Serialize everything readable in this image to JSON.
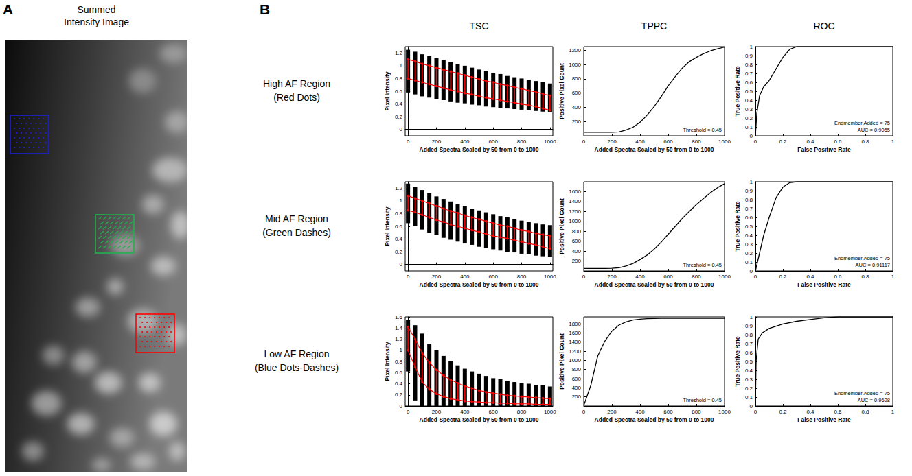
{
  "panel_a": {
    "letter": "A",
    "title_lines": [
      "Summed",
      "Intensity Image"
    ]
  },
  "panel_b": {
    "letter": "B",
    "column_titles": [
      "TSC",
      "TPPC",
      "ROC"
    ],
    "rows": [
      {
        "name": "High AF Region",
        "detail": "(Red Dots)",
        "color": "#ff0000",
        "marker": "dots"
      },
      {
        "name": "Mid AF Region",
        "detail": "(Green Dashes)",
        "color": "#22b14c",
        "marker": "dashes"
      },
      {
        "name": "Low AF Region",
        "detail": "(Blue Dots-Dashes)",
        "color": "#1f1fd6",
        "marker": "dot-dashes"
      }
    ]
  },
  "chart_data": [
    {
      "type": "range",
      "x_label": "Added Spectra Scaled by 50 from 0 to 1000",
      "y_label": "Pixel Intensity",
      "x": [
        0,
        50,
        100,
        150,
        200,
        250,
        300,
        350,
        400,
        450,
        500,
        550,
        600,
        650,
        700,
        750,
        800,
        850,
        900,
        950,
        1000
      ],
      "range": {
        "color": "#000000",
        "low": [
          0.58,
          0.55,
          0.52,
          0.5,
          0.48,
          0.46,
          0.44,
          0.42,
          0.41,
          0.39,
          0.38,
          0.36,
          0.35,
          0.34,
          0.33,
          0.32,
          0.31,
          0.3,
          0.29,
          0.28,
          0.27
        ],
        "high": [
          1.25,
          1.22,
          1.18,
          1.15,
          1.12,
          1.09,
          1.06,
          1.03,
          1.0,
          0.97,
          0.94,
          0.92,
          0.89,
          0.87,
          0.84,
          0.82,
          0.8,
          0.78,
          0.76,
          0.74,
          0.72
        ]
      },
      "inner_range": {
        "color": "#ff0000",
        "marker": "circle",
        "low": [
          0.8,
          0.77,
          0.74,
          0.71,
          0.68,
          0.65,
          0.62,
          0.6,
          0.57,
          0.55,
          0.52,
          0.5,
          0.48,
          0.46,
          0.44,
          0.42,
          0.4,
          0.38,
          0.36,
          0.33,
          0.3
        ],
        "high": [
          1.1,
          1.07,
          1.03,
          1.0,
          0.97,
          0.94,
          0.91,
          0.88,
          0.85,
          0.82,
          0.79,
          0.76,
          0.74,
          0.71,
          0.69,
          0.66,
          0.64,
          0.61,
          0.59,
          0.56,
          0.53
        ]
      },
      "xlim": [
        -20,
        1020
      ],
      "xticks": [
        0,
        200,
        400,
        600,
        800,
        1000
      ],
      "ylim": [
        -0.1,
        1.3
      ],
      "yticks": [
        0,
        0.2,
        0.4,
        0.6,
        0.8,
        1,
        1.2
      ],
      "grid": false
    },
    {
      "type": "line",
      "x_label": "Added Spectra Scaled by 50 from 0 to 1000",
      "y_label": "Positive Pixel Count",
      "x": [
        0,
        50,
        100,
        150,
        200,
        250,
        300,
        350,
        400,
        450,
        500,
        550,
        600,
        650,
        700,
        750,
        800,
        850,
        900,
        950,
        1000
      ],
      "values": [
        50,
        50,
        50,
        50,
        50,
        55,
        80,
        120,
        190,
        290,
        410,
        550,
        700,
        830,
        950,
        1040,
        1100,
        1150,
        1190,
        1220,
        1245
      ],
      "color": "#000000",
      "annotations": [
        "Threshold = 0.45"
      ],
      "xlim": [
        0,
        1000
      ],
      "xticks": [
        0,
        200,
        400,
        600,
        800,
        1000
      ],
      "ylim": [
        0,
        1250
      ],
      "yticks": [
        200,
        400,
        600,
        800,
        1000,
        1200
      ],
      "grid": false
    },
    {
      "type": "line",
      "x_label": "False Positive Rate",
      "y_label": "True Positive Rate",
      "x": [
        0,
        0.01,
        0.03,
        0.06,
        0.1,
        0.15,
        0.2,
        0.25,
        0.3,
        1
      ],
      "values": [
        0,
        0.25,
        0.45,
        0.55,
        0.62,
        0.75,
        0.88,
        0.97,
        1,
        1
      ],
      "color": "#000000",
      "annotations": [
        "Endmember Added = 75",
        "AUC = 0.9055"
      ],
      "xlim": [
        0,
        1
      ],
      "xticks": [
        0,
        0.2,
        0.4,
        0.6,
        0.8,
        1
      ],
      "ylim": [
        0,
        1
      ],
      "yticks": [
        0,
        0.1,
        0.2,
        0.3,
        0.4,
        0.5,
        0.6,
        0.7,
        0.8,
        0.9,
        1
      ],
      "grid": false
    },
    {
      "type": "range",
      "x_label": "Added Spectra Scaled by 50 from 0 to 1000",
      "y_label": "Pixel Intensity",
      "x": [
        0,
        50,
        100,
        150,
        200,
        250,
        300,
        350,
        400,
        450,
        500,
        550,
        600,
        650,
        700,
        750,
        800,
        850,
        900,
        950,
        1000
      ],
      "range": {
        "color": "#000000",
        "low": [
          0.65,
          0.6,
          0.55,
          0.5,
          0.46,
          0.42,
          0.39,
          0.36,
          0.33,
          0.31,
          0.28,
          0.26,
          0.24,
          0.22,
          0.2,
          0.19,
          0.17,
          0.16,
          0.14,
          0.13,
          0.12
        ],
        "high": [
          1.27,
          1.22,
          1.17,
          1.12,
          1.07,
          1.03,
          0.99,
          0.95,
          0.92,
          0.88,
          0.85,
          0.82,
          0.79,
          0.76,
          0.74,
          0.71,
          0.69,
          0.67,
          0.65,
          0.63,
          0.62
        ]
      },
      "inner_range": {
        "color": "#ff0000",
        "marker": "circle",
        "low": [
          0.85,
          0.82,
          0.78,
          0.74,
          0.7,
          0.67,
          0.63,
          0.6,
          0.57,
          0.54,
          0.51,
          0.48,
          0.45,
          0.43,
          0.41,
          0.38,
          0.36,
          0.33,
          0.31,
          0.28,
          0.25
        ],
        "high": [
          1.08,
          1.04,
          1.0,
          0.96,
          0.92,
          0.88,
          0.84,
          0.81,
          0.77,
          0.74,
          0.71,
          0.68,
          0.65,
          0.62,
          0.6,
          0.57,
          0.54,
          0.52,
          0.49,
          0.47,
          0.45
        ]
      },
      "xlim": [
        -20,
        1020
      ],
      "xticks": [
        0,
        200,
        400,
        600,
        800,
        1000
      ],
      "ylim": [
        -0.1,
        1.3
      ],
      "yticks": [
        0,
        0.2,
        0.4,
        0.6,
        0.8,
        1,
        1.2
      ],
      "grid": false
    },
    {
      "type": "line",
      "x_label": "Added Spectra Scaled by 50 from 0 to 1000",
      "y_label": "Positive Pixel Count",
      "x": [
        0,
        50,
        100,
        150,
        200,
        250,
        300,
        350,
        400,
        450,
        500,
        550,
        600,
        650,
        700,
        750,
        800,
        850,
        900,
        950,
        1000
      ],
      "values": [
        50,
        50,
        50,
        50,
        55,
        65,
        100,
        150,
        230,
        320,
        440,
        580,
        740,
        900,
        1060,
        1200,
        1340,
        1460,
        1580,
        1680,
        1760
      ],
      "color": "#000000",
      "annotations": [
        "Threshold = 0.45"
      ],
      "xlim": [
        0,
        1000
      ],
      "xticks": [
        0,
        200,
        400,
        600,
        800,
        1000
      ],
      "ylim": [
        0,
        1800
      ],
      "yticks": [
        200,
        400,
        600,
        800,
        1000,
        1200,
        1400,
        1600
      ],
      "grid": false
    },
    {
      "type": "line",
      "x_label": "False Positive Rate",
      "y_label": "True Positive Rate",
      "x": [
        0,
        0.03,
        0.06,
        0.1,
        0.15,
        0.2,
        0.25,
        0.3,
        1
      ],
      "values": [
        0,
        0.2,
        0.4,
        0.6,
        0.82,
        0.94,
        0.99,
        1,
        1
      ],
      "color": "#000000",
      "annotations": [
        "Endmember Added = 75",
        "AUC = 0.91117"
      ],
      "xlim": [
        0,
        1
      ],
      "xticks": [
        0,
        0.2,
        0.4,
        0.6,
        0.8,
        1
      ],
      "ylim": [
        0,
        1
      ],
      "yticks": [
        0,
        0.1,
        0.2,
        0.3,
        0.4,
        0.5,
        0.6,
        0.7,
        0.8,
        0.9,
        1
      ],
      "grid": false
    },
    {
      "type": "range",
      "x_label": "Added Spectra Scaled by 50 from 0 to 1000",
      "y_label": "Pixel Intensity",
      "x": [
        0,
        50,
        100,
        150,
        200,
        250,
        300,
        350,
        400,
        450,
        500,
        550,
        600,
        650,
        700,
        750,
        800,
        850,
        900,
        950,
        1000
      ],
      "range": {
        "color": "#000000",
        "low": [
          0.62,
          0.1,
          0,
          0,
          0,
          0,
          0,
          0,
          0,
          0,
          0,
          0,
          0,
          0,
          0,
          0,
          0,
          0,
          0,
          0,
          0
        ],
        "high": [
          1.55,
          1.45,
          1.3,
          1.12,
          1.0,
          0.9,
          0.8,
          0.73,
          0.67,
          0.62,
          0.58,
          0.54,
          0.5,
          0.48,
          0.45,
          0.43,
          0.41,
          0.4,
          0.38,
          0.37,
          0.35
        ]
      },
      "inner_range": {
        "color": "#ff0000",
        "marker": "circle",
        "low": [
          1.0,
          0.7,
          0.43,
          0.3,
          0.22,
          0.17,
          0.13,
          0.11,
          0.09,
          0.08,
          0.07,
          0.06,
          0.06,
          0.05,
          0.05,
          0.04,
          0.04,
          0.04,
          0.03,
          0.03,
          0.03
        ],
        "high": [
          1.42,
          1.2,
          0.95,
          0.78,
          0.65,
          0.55,
          0.47,
          0.41,
          0.36,
          0.32,
          0.28,
          0.25,
          0.23,
          0.21,
          0.19,
          0.18,
          0.17,
          0.16,
          0.15,
          0.14,
          0.13
        ]
      },
      "xlim": [
        -20,
        1020
      ],
      "xticks": [
        0,
        200,
        400,
        600,
        800,
        1000
      ],
      "ylim": [
        0,
        1.6
      ],
      "yticks": [
        0,
        0.2,
        0.4,
        0.6,
        0.8,
        1,
        1.2,
        1.4,
        1.6
      ],
      "grid": false
    },
    {
      "type": "line",
      "x_label": "Added Spectra Scaled by 50 from 0 to 1000",
      "y_label": "Positive Pixel Count",
      "x": [
        0,
        50,
        100,
        150,
        200,
        250,
        300,
        350,
        400,
        450,
        500,
        550,
        600,
        650,
        700,
        750,
        800,
        850,
        900,
        950,
        1000
      ],
      "values": [
        10,
        450,
        1100,
        1420,
        1640,
        1770,
        1840,
        1880,
        1900,
        1910,
        1915,
        1918,
        1920,
        1920,
        1920,
        1920,
        1920,
        1920,
        1920,
        1920,
        1920
      ],
      "color": "#000000",
      "annotations": [
        "Threshold = 0.45"
      ],
      "xlim": [
        0,
        1000
      ],
      "xticks": [
        0,
        200,
        400,
        600,
        800,
        1000
      ],
      "ylim": [
        0,
        1950
      ],
      "yticks": [
        200,
        400,
        600,
        800,
        1000,
        1200,
        1400,
        1600,
        1800
      ],
      "grid": false
    },
    {
      "type": "line",
      "x_label": "False Positive Rate",
      "y_label": "True Positive Rate",
      "x": [
        0,
        0.005,
        0.02,
        0.05,
        0.1,
        0.2,
        0.3,
        0.4,
        0.5,
        0.6,
        1
      ],
      "values": [
        0,
        0.5,
        0.75,
        0.82,
        0.87,
        0.92,
        0.95,
        0.97,
        0.99,
        1,
        1
      ],
      "color": "#000000",
      "annotations": [
        "Endmember Added = 75",
        "AUC = 0.9628"
      ],
      "xlim": [
        0,
        1
      ],
      "xticks": [
        0,
        0.2,
        0.4,
        0.6,
        0.8,
        1
      ],
      "ylim": [
        0,
        1
      ],
      "yticks": [
        0,
        0.1,
        0.2,
        0.3,
        0.4,
        0.5,
        0.6,
        0.7,
        0.8,
        0.9,
        1
      ],
      "grid": false
    }
  ]
}
